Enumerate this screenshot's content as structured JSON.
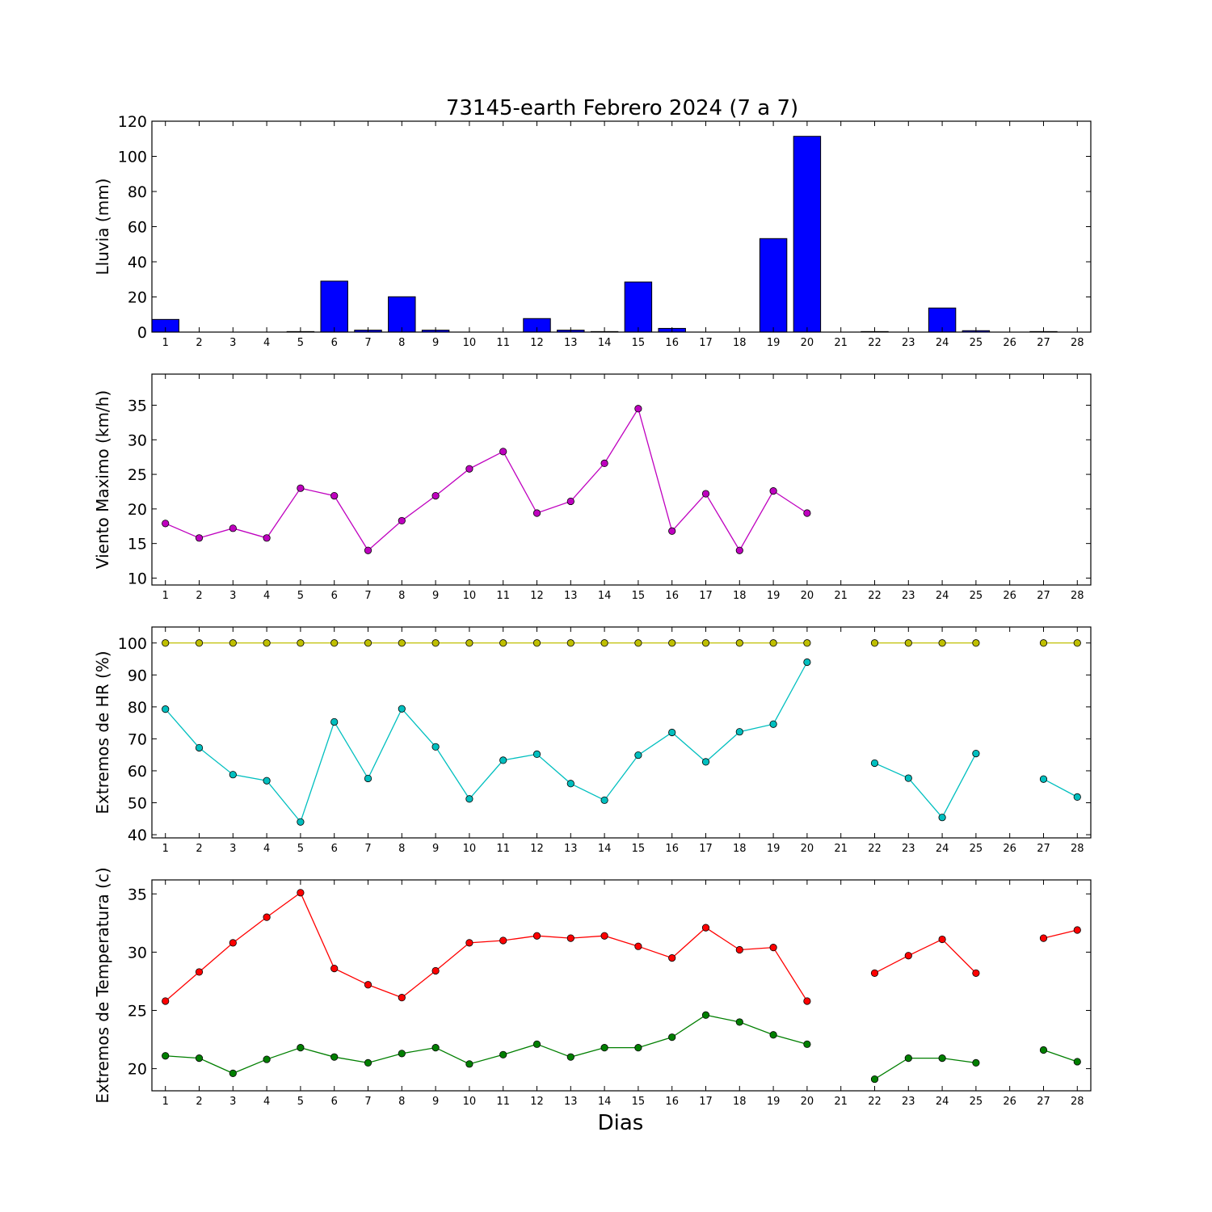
{
  "title": "73145-earth Febrero 2024  (7 a 7)",
  "xlabel": "Dias",
  "chart_data": [
    {
      "type": "bar",
      "ylabel": "Lluvia (mm)",
      "ylim": [
        0,
        120
      ],
      "yticks": [
        0,
        20,
        40,
        60,
        80,
        100,
        120
      ],
      "x": [
        1,
        2,
        3,
        4,
        5,
        6,
        7,
        8,
        9,
        10,
        11,
        12,
        13,
        14,
        15,
        16,
        17,
        18,
        19,
        20,
        21,
        22,
        23,
        24,
        25,
        26,
        27,
        28
      ],
      "series": [
        {
          "color": "#0000ff",
          "values": [
            7.2,
            0,
            0,
            0,
            0.3,
            29,
            1.1,
            20.1,
            1.1,
            0,
            0,
            7.7,
            1.1,
            0.3,
            28.5,
            2.1,
            0,
            0,
            53.2,
            111.4,
            0,
            0.3,
            0,
            13.7,
            0.8,
            0,
            0.3,
            0
          ]
        }
      ]
    },
    {
      "type": "line",
      "ylabel": "Viento Maximo (km/h)",
      "ylim": [
        9,
        39.5
      ],
      "yticks": [
        10,
        15,
        20,
        25,
        30,
        35
      ],
      "x": [
        1,
        2,
        3,
        4,
        5,
        6,
        7,
        8,
        9,
        10,
        11,
        12,
        13,
        14,
        15,
        16,
        17,
        18,
        19,
        20,
        21,
        22,
        23,
        24,
        25,
        26,
        27,
        28
      ],
      "series": [
        {
          "color": "#bf00bf",
          "values": [
            17.9,
            15.8,
            17.2,
            15.8,
            23.0,
            21.9,
            14.0,
            18.3,
            21.9,
            25.8,
            28.3,
            19.4,
            21.1,
            26.6,
            34.5,
            16.8,
            22.2,
            14.0,
            22.6,
            19.4,
            null,
            null,
            null,
            null,
            null,
            null,
            null,
            null
          ]
        }
      ]
    },
    {
      "type": "line",
      "ylabel": "Extremos de HR (%)",
      "ylim": [
        39,
        105
      ],
      "yticks": [
        40,
        50,
        60,
        70,
        80,
        90,
        100
      ],
      "x": [
        1,
        2,
        3,
        4,
        5,
        6,
        7,
        8,
        9,
        10,
        11,
        12,
        13,
        14,
        15,
        16,
        17,
        18,
        19,
        20,
        21,
        22,
        23,
        24,
        25,
        26,
        27,
        28
      ],
      "series": [
        {
          "color": "#bfbf00",
          "values": [
            100,
            100,
            100,
            100,
            100,
            100,
            100,
            100,
            100,
            100,
            100,
            100,
            100,
            100,
            100,
            100,
            100,
            100,
            100,
            100,
            null,
            100,
            100,
            100,
            100,
            null,
            100,
            100
          ]
        },
        {
          "color": "#00bfbf",
          "values": [
            79.3,
            67.2,
            58.8,
            56.9,
            44.0,
            75.3,
            57.6,
            79.4,
            67.5,
            51.2,
            63.3,
            65.2,
            56.0,
            50.8,
            64.9,
            72.0,
            62.8,
            72.2,
            74.6,
            94.0,
            null,
            62.4,
            57.7,
            45.4,
            65.4,
            null,
            57.4,
            51.8
          ]
        }
      ]
    },
    {
      "type": "line",
      "ylabel": "Extremos de Temperatura (c)",
      "ylim": [
        18.1,
        36.2
      ],
      "yticks": [
        20,
        25,
        30,
        35
      ],
      "x": [
        1,
        2,
        3,
        4,
        5,
        6,
        7,
        8,
        9,
        10,
        11,
        12,
        13,
        14,
        15,
        16,
        17,
        18,
        19,
        20,
        21,
        22,
        23,
        24,
        25,
        26,
        27,
        28
      ],
      "series": [
        {
          "color": "#ff0000",
          "values": [
            25.8,
            28.3,
            30.8,
            33.0,
            35.1,
            28.6,
            27.2,
            26.1,
            28.4,
            30.8,
            31.0,
            31.4,
            31.2,
            31.4,
            30.5,
            29.5,
            32.1,
            30.2,
            30.4,
            25.8,
            null,
            28.2,
            29.7,
            31.1,
            28.2,
            null,
            31.2,
            31.9
          ]
        },
        {
          "color": "#007f00",
          "values": [
            21.1,
            20.9,
            19.6,
            20.8,
            21.8,
            21.0,
            20.5,
            21.3,
            21.8,
            20.4,
            21.2,
            22.1,
            21.0,
            21.8,
            21.8,
            22.7,
            24.6,
            24.0,
            22.9,
            22.1,
            null,
            19.1,
            20.9,
            20.9,
            20.5,
            null,
            21.6,
            20.6
          ]
        }
      ]
    }
  ]
}
